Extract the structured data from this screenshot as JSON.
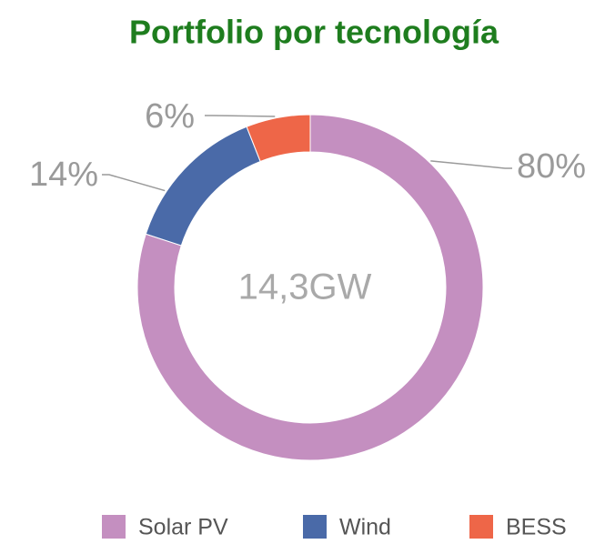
{
  "chart_data": {
    "type": "donut",
    "title": "Portfolio por tecnología",
    "center_label": "14,3GW",
    "categories": [
      "Solar PV",
      "Wind",
      "BESS"
    ],
    "values": [
      80,
      14,
      6
    ],
    "value_labels": [
      "80%",
      "14%",
      "6%"
    ],
    "colors": [
      "#c48fc0",
      "#4a6aa8",
      "#ee6648"
    ],
    "legend": "bottom"
  }
}
